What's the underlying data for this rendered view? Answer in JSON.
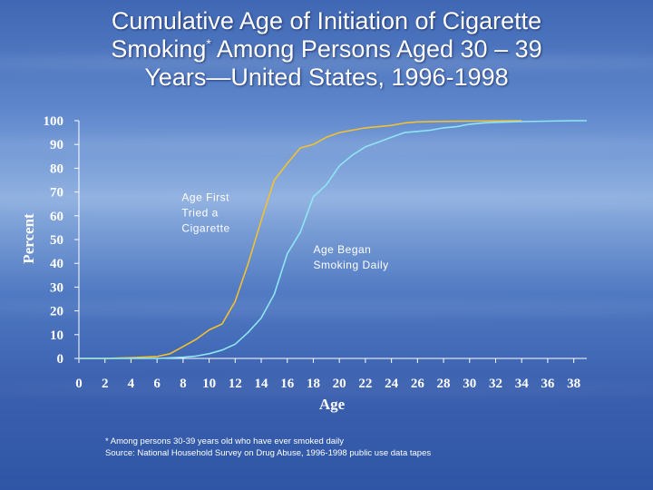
{
  "slide": {
    "title_line1": "Cumulative Age of Initiation of Cigarette",
    "title_line2_a": "Smoking",
    "title_line2_sup": "*",
    "title_line2_b": " Among Persons Aged 30 – 39",
    "title_line3": "Years—United States, 1996-1998",
    "footnote_line1": "* Among persons 30-39 years old who have ever smoked daily",
    "footnote_line2": "Source:  National Household Survey on Drug Abuse, 1996-1998 public use data tapes"
  },
  "chart_data": {
    "type": "line",
    "xlabel": "Age",
    "ylabel": "Percent",
    "xlim": [
      0,
      39
    ],
    "ylim": [
      0,
      100
    ],
    "x_ticks": [
      0,
      2,
      4,
      6,
      8,
      10,
      12,
      14,
      16,
      18,
      20,
      22,
      24,
      26,
      28,
      30,
      32,
      34,
      36,
      38
    ],
    "y_ticks": [
      0,
      10,
      20,
      30,
      40,
      50,
      60,
      70,
      80,
      90,
      100
    ],
    "grid": false,
    "series": [
      {
        "name": "Age First Tried a Cigarette",
        "label_lines": [
          "Age First",
          "Tried a",
          "Cigarette"
        ],
        "color": "#f2c12e",
        "x": [
          0,
          2,
          4,
          6,
          7,
          8,
          9,
          10,
          11,
          12,
          13,
          14,
          15,
          16,
          17,
          18,
          19,
          20,
          21,
          22,
          23,
          24,
          25,
          26,
          28,
          30,
          32,
          34
        ],
        "y": [
          0,
          0,
          0.3,
          0.8,
          2,
          5,
          8,
          12,
          14.5,
          24,
          40,
          58,
          75,
          82,
          88.5,
          90,
          93,
          95,
          96,
          97,
          97.5,
          98,
          99,
          99.5,
          99.7,
          99.8,
          99.9,
          100
        ]
      },
      {
        "name": "Age Began Smoking Daily",
        "label_lines": [
          "Age Began",
          "Smoking Daily"
        ],
        "color": "#8fe6f2",
        "x": [
          0,
          2,
          4,
          6,
          8,
          9,
          10,
          11,
          12,
          13,
          14,
          15,
          16,
          17,
          18,
          19,
          20,
          21,
          22,
          23,
          24,
          25,
          26,
          27,
          28,
          29,
          30,
          31,
          32,
          34,
          36,
          38,
          39
        ],
        "y": [
          0,
          0,
          0,
          0,
          0.5,
          1,
          2,
          3.5,
          6,
          11,
          17,
          27,
          44,
          53,
          68,
          73,
          81,
          85.5,
          89,
          91,
          93,
          95,
          95.5,
          96,
          97,
          97.5,
          98.5,
          99,
          99.3,
          99.6,
          99.8,
          100,
          100
        ]
      }
    ]
  }
}
